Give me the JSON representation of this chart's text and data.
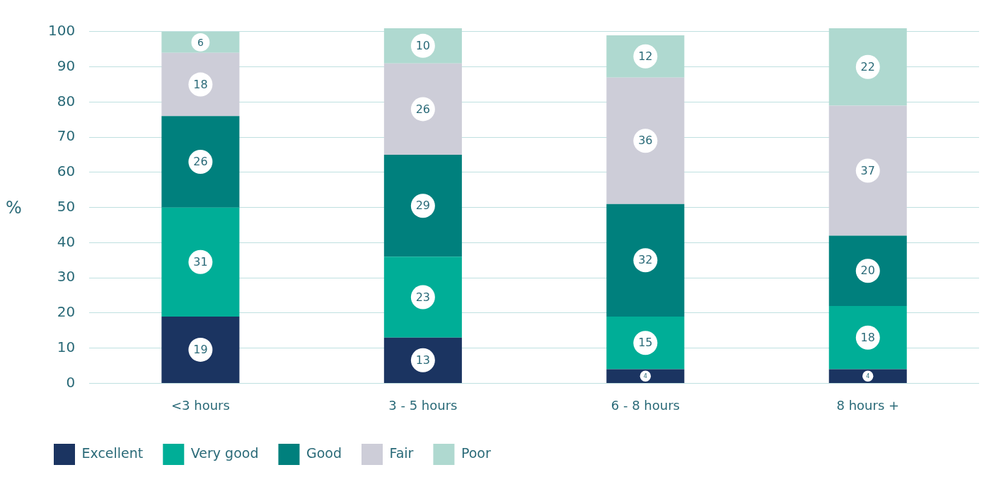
{
  "chart_data": {
    "type": "bar",
    "stacked": true,
    "ylabel": "%",
    "categories": [
      "<3 hours",
      "3 - 5 hours",
      "6 - 8 hours",
      "8 hours +"
    ],
    "series": [
      {
        "name": "Excellent",
        "color": "#1b3461",
        "values": [
          19,
          13,
          4,
          4
        ]
      },
      {
        "name": "Very good",
        "color": "#00ae97",
        "values": [
          31,
          23,
          15,
          18
        ]
      },
      {
        "name": "Good",
        "color": "#00807d",
        "values": [
          26,
          29,
          32,
          20
        ]
      },
      {
        "name": "Fair",
        "color": "#cdcdd8",
        "values": [
          18,
          26,
          36,
          37
        ]
      },
      {
        "name": "Poor",
        "color": "#afd9d0",
        "values": [
          6,
          10,
          12,
          22
        ]
      }
    ],
    "ylim": [
      0,
      101
    ],
    "yticks": [
      0,
      10,
      20,
      30,
      40,
      50,
      60,
      70,
      80,
      90,
      100
    ],
    "grid": "y",
    "legend": "bottom left",
    "data_labels": true
  }
}
